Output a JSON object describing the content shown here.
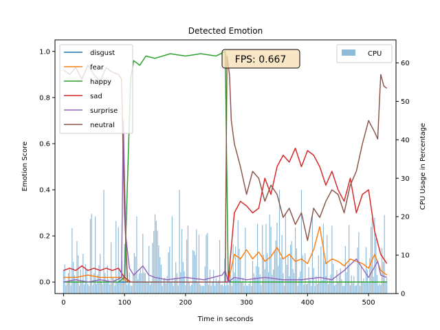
{
  "chart_data": {
    "type": "line",
    "title": "Detected Emotion",
    "xlabel": "Time in seconds",
    "ylabel": "Emotion Score",
    "y2label": "CPU Usage in Percentage",
    "xlim": [
      -14,
      545
    ],
    "ylim": [
      -0.05,
      1.05
    ],
    "y2lim": [
      0,
      66
    ],
    "x_ticks": [
      0,
      100,
      200,
      300,
      400,
      500
    ],
    "y_ticks": [
      0.0,
      0.2,
      0.4,
      0.6,
      0.8,
      1.0
    ],
    "y2_ticks": [
      0,
      10,
      20,
      30,
      40,
      50,
      60
    ],
    "legend_location": "upper-left",
    "legend2_location": "upper-right",
    "annotation": "FPS: 0.667",
    "series": [
      {
        "name": "disgust",
        "color": "#1f77b4",
        "x": [
          0,
          100,
          200,
          300,
          400,
          530
        ],
        "values": [
          0.0,
          0.0,
          0.0,
          0.0,
          0.0,
          0.0
        ]
      },
      {
        "name": "fear",
        "color": "#ff7f0e",
        "x": [
          0,
          20,
          40,
          60,
          80,
          95,
          105,
          140,
          200,
          260,
          270,
          280,
          290,
          300,
          310,
          320,
          330,
          340,
          350,
          360,
          370,
          380,
          390,
          400,
          410,
          420,
          430,
          440,
          450,
          460,
          470,
          480,
          490,
          500,
          510,
          520,
          530
        ],
        "values": [
          0.02,
          0.02,
          0.03,
          0.02,
          0.02,
          0.02,
          0.0,
          0.0,
          0.0,
          0.0,
          0.0,
          0.12,
          0.1,
          0.14,
          0.1,
          0.13,
          0.09,
          0.11,
          0.15,
          0.1,
          0.12,
          0.09,
          0.1,
          0.08,
          0.14,
          0.24,
          0.08,
          0.1,
          0.09,
          0.07,
          0.1,
          0.09,
          0.08,
          0.06,
          0.12,
          0.05,
          0.03
        ]
      },
      {
        "name": "happy",
        "color": "#2ca02c",
        "x": [
          0,
          90,
          100,
          105,
          110,
          115,
          125,
          135,
          150,
          175,
          200,
          225,
          250,
          265,
          270,
          275,
          530
        ],
        "values": [
          0.0,
          0.0,
          0.02,
          0.45,
          0.88,
          0.96,
          0.94,
          0.98,
          0.97,
          0.99,
          0.98,
          0.99,
          0.98,
          1.0,
          0.01,
          0.0,
          0.0
        ]
      },
      {
        "name": "sad",
        "color": "#d62728",
        "x": [
          0,
          10,
          20,
          30,
          40,
          50,
          60,
          70,
          80,
          90,
          100,
          110,
          120,
          130,
          150,
          180,
          220,
          260,
          270,
          280,
          290,
          300,
          310,
          320,
          330,
          340,
          350,
          360,
          370,
          380,
          390,
          400,
          410,
          420,
          430,
          440,
          450,
          460,
          470,
          480,
          490,
          500,
          510,
          520,
          530
        ],
        "values": [
          0.05,
          0.06,
          0.05,
          0.07,
          0.05,
          0.06,
          0.05,
          0.06,
          0.05,
          0.06,
          0.02,
          0.0,
          0.0,
          0.0,
          0.0,
          0.0,
          0.0,
          0.0,
          0.0,
          0.3,
          0.35,
          0.33,
          0.3,
          0.32,
          0.45,
          0.38,
          0.5,
          0.55,
          0.52,
          0.58,
          0.5,
          0.57,
          0.55,
          0.5,
          0.42,
          0.48,
          0.4,
          0.35,
          0.45,
          0.3,
          0.38,
          0.4,
          0.22,
          0.12,
          0.08
        ]
      },
      {
        "name": "surprise",
        "color": "#9467bd",
        "x": [
          0,
          20,
          40,
          60,
          80,
          95,
          98,
          102,
          108,
          115,
          130,
          140,
          150,
          170,
          200,
          230,
          260,
          265,
          270,
          280,
          300,
          330,
          360,
          390,
          420,
          440,
          460,
          480,
          500,
          515,
          520,
          530
        ],
        "values": [
          0.0,
          0.01,
          0.0,
          0.01,
          0.0,
          0.02,
          0.7,
          0.2,
          0.06,
          0.03,
          0.07,
          0.03,
          0.02,
          0.01,
          0.02,
          0.01,
          0.03,
          0.05,
          0.0,
          0.02,
          0.01,
          0.02,
          0.01,
          0.01,
          0.02,
          0.01,
          0.05,
          0.1,
          0.02,
          0.09,
          0.03,
          0.02
        ]
      },
      {
        "name": "neutral",
        "color": "#8c564b",
        "x": [
          0,
          10,
          20,
          30,
          40,
          50,
          60,
          70,
          80,
          90,
          95,
          100,
          105,
          110,
          200,
          265,
          268,
          272,
          275,
          280,
          285,
          290,
          300,
          310,
          320,
          330,
          340,
          350,
          360,
          370,
          380,
          390,
          400,
          410,
          420,
          430,
          440,
          450,
          460,
          470,
          480,
          490,
          500,
          510,
          515,
          520,
          525,
          530
        ],
        "values": [
          0.92,
          0.9,
          0.93,
          0.88,
          0.94,
          0.9,
          0.87,
          0.93,
          0.91,
          0.9,
          0.88,
          0.3,
          0.0,
          0.0,
          0.0,
          0.0,
          0.98,
          0.9,
          0.7,
          0.6,
          0.55,
          0.5,
          0.38,
          0.48,
          0.45,
          0.35,
          0.42,
          0.38,
          0.28,
          0.32,
          0.25,
          0.3,
          0.18,
          0.32,
          0.28,
          0.35,
          0.4,
          0.38,
          0.3,
          0.42,
          0.48,
          0.6,
          0.7,
          0.65,
          0.62,
          0.9,
          0.85,
          0.84
        ]
      }
    ],
    "cpu_series": {
      "name": "CPU",
      "color": "#1f77b4",
      "alpha": 0.5,
      "x_range": [
        0,
        530
      ],
      "typical_range": [
        2,
        22
      ],
      "peak": 27
    }
  }
}
